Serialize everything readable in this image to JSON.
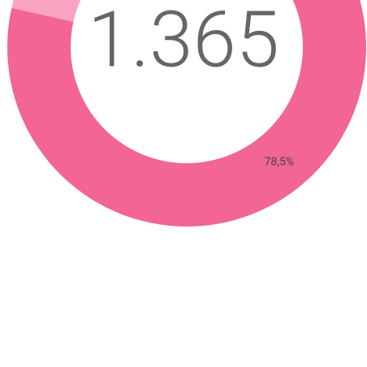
{
  "chart_data": {
    "type": "pie",
    "donut": true,
    "values": [
      78.5,
      21.5
    ],
    "value_labels": [
      "78,5%",
      null
    ],
    "colors": [
      "#f26594",
      "#f8a3c1"
    ],
    "center_label": "1.365"
  }
}
